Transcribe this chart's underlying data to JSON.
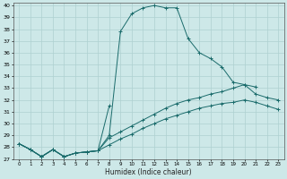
{
  "xlabel": "Humidex (Indice chaleur)",
  "ylabel": "",
  "background_color": "#cde8e8",
  "line_color": "#1a6b6b",
  "grid_color": "#aed0d0",
  "xlim": [
    -0.5,
    23.5
  ],
  "ylim": [
    27,
    40.2
  ],
  "yticks": [
    27,
    28,
    29,
    30,
    31,
    32,
    33,
    34,
    35,
    36,
    37,
    38,
    39,
    40
  ],
  "xticks": [
    0,
    1,
    2,
    3,
    4,
    5,
    6,
    7,
    8,
    9,
    10,
    11,
    12,
    13,
    14,
    15,
    16,
    17,
    18,
    19,
    20,
    21,
    22,
    23
  ],
  "lines": [
    {
      "x": [
        0,
        1,
        2,
        3,
        4,
        5,
        6,
        7,
        8,
        9,
        10,
        11,
        12,
        13,
        14,
        15,
        16,
        17,
        18,
        19,
        20,
        21
      ],
      "y": [
        28.3,
        27.8,
        27.2,
        27.8,
        27.2,
        27.5,
        27.6,
        27.7,
        29.0,
        37.8,
        39.3,
        39.8,
        40.0,
        39.8,
        39.8,
        37.2,
        36.0,
        35.5,
        34.8,
        33.5,
        33.3,
        33.1
      ]
    },
    {
      "x": [
        0,
        1,
        2,
        3,
        4,
        5,
        6,
        7,
        8
      ],
      "y": [
        28.3,
        27.8,
        27.2,
        27.8,
        27.2,
        27.5,
        27.6,
        27.7,
        31.5
      ]
    },
    {
      "x": [
        0,
        1,
        2,
        3,
        4,
        5,
        6,
        7,
        8,
        9,
        10,
        11,
        12,
        13,
        14,
        15,
        16,
        17,
        18,
        19,
        20,
        21,
        22,
        23
      ],
      "y": [
        28.3,
        27.8,
        27.2,
        27.8,
        27.2,
        27.5,
        27.6,
        27.7,
        28.8,
        29.3,
        29.8,
        30.3,
        30.8,
        31.3,
        31.7,
        32.0,
        32.2,
        32.5,
        32.7,
        33.0,
        33.3,
        32.5,
        32.2,
        32.0
      ]
    },
    {
      "x": [
        0,
        1,
        2,
        3,
        4,
        5,
        6,
        7,
        8,
        9,
        10,
        11,
        12,
        13,
        14,
        15,
        16,
        17,
        18,
        19,
        20,
        21,
        22,
        23
      ],
      "y": [
        28.3,
        27.8,
        27.2,
        27.8,
        27.2,
        27.5,
        27.6,
        27.7,
        28.2,
        28.7,
        29.1,
        29.6,
        30.0,
        30.4,
        30.7,
        31.0,
        31.3,
        31.5,
        31.7,
        31.8,
        32.0,
        31.8,
        31.5,
        31.2
      ]
    }
  ]
}
